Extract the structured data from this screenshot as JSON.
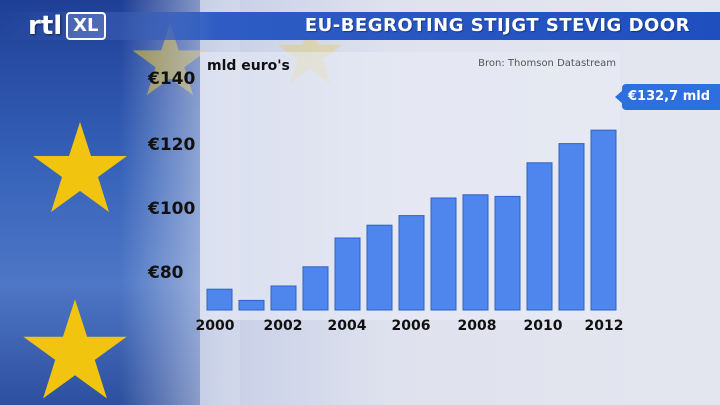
{
  "header": {
    "title": "EU-BEGROTING STIJGT STEVIG DOOR",
    "logo_text": "rtl",
    "logo_badge": "XL"
  },
  "colors": {
    "bar": "#4f86ee",
    "bar_edge": "#2f62c6",
    "header": "#2e5cc4",
    "star": "#f1c40f",
    "callout": "#2e6fe0"
  },
  "chart_data": {
    "type": "bar",
    "title": "EU-BEGROTING STIJGT STEVIG DOOR",
    "ylabel": "mld euro's",
    "source": "Bron: Thomson Datastream",
    "categories": [
      "2000",
      "2001",
      "2002",
      "2003",
      "2004",
      "2005",
      "2006",
      "2007",
      "2008",
      "2009",
      "2010",
      "2011",
      "2012"
    ],
    "values": [
      83,
      79.5,
      84,
      90,
      99,
      103,
      106,
      111.5,
      112.5,
      112,
      122.5,
      128.5,
      132.7
    ],
    "ylim": [
      70,
      140
    ],
    "yticks": [
      "€80",
      "€100",
      "€120",
      "€140"
    ],
    "ytick_values": [
      80,
      100,
      120,
      140
    ],
    "xticks": [
      "2000",
      "2002",
      "2004",
      "2006",
      "2008",
      "2010",
      "2012"
    ],
    "annotation": "€132,7 mld",
    "grid": false
  }
}
